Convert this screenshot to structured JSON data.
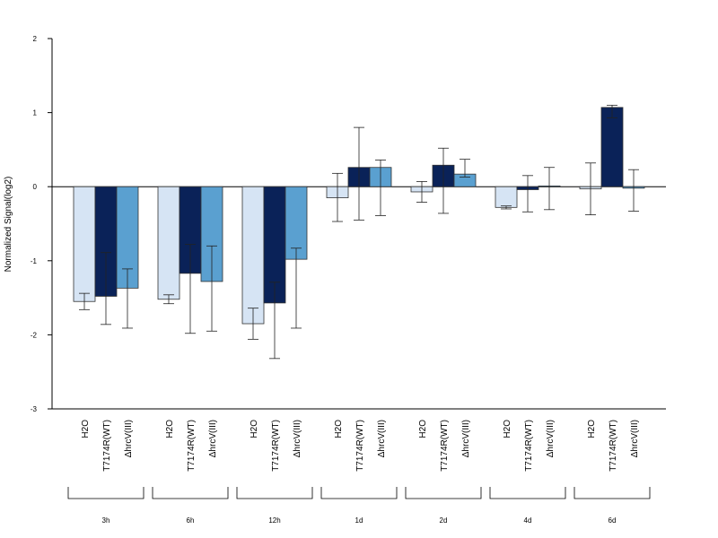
{
  "chart_data": {
    "type": "bar",
    "ylabel": "Normalized Signal(log2)",
    "xlabel": "",
    "ylim": [
      -3,
      2
    ],
    "yticks": [
      "2",
      "1",
      "0",
      "-1",
      "-2",
      "-3"
    ],
    "groups": [
      "3h",
      "6h",
      "12h",
      "1d",
      "2d",
      "4d",
      "6d"
    ],
    "series": [
      {
        "name": "H2O",
        "color": "#d6e4f4",
        "values": [
          -1.55,
          -1.52,
          -1.85,
          -0.15,
          -0.07,
          -0.28,
          -0.03
        ],
        "err_low": [
          -1.66,
          -1.58,
          -2.06,
          -0.47,
          -0.21,
          -0.3,
          -0.38
        ],
        "err_high": [
          -1.44,
          -1.46,
          -1.64,
          0.18,
          0.07,
          -0.26,
          0.32
        ]
      },
      {
        "name": "T7174R(WT)",
        "color": "#0a2258",
        "values": [
          -1.48,
          -1.17,
          -1.57,
          0.26,
          0.29,
          -0.04,
          1.07
        ],
        "err_low": [
          -1.86,
          -1.98,
          -2.32,
          -0.45,
          -0.36,
          -0.34,
          0.93
        ],
        "err_high": [
          -0.89,
          -0.78,
          -1.29,
          0.8,
          0.52,
          0.15,
          1.1
        ]
      },
      {
        "name": "ΔhrcV(III)",
        "color": "#5aa0d0",
        "values": [
          -1.37,
          -1.28,
          -0.98,
          0.26,
          0.17,
          0.01,
          -0.02
        ],
        "err_low": [
          -1.91,
          -1.95,
          -1.91,
          -0.39,
          0.13,
          -0.31,
          -0.33
        ],
        "err_high": [
          -1.11,
          -0.8,
          -0.83,
          0.36,
          0.37,
          0.26,
          0.23
        ]
      }
    ],
    "grid": false,
    "legend": "none"
  }
}
